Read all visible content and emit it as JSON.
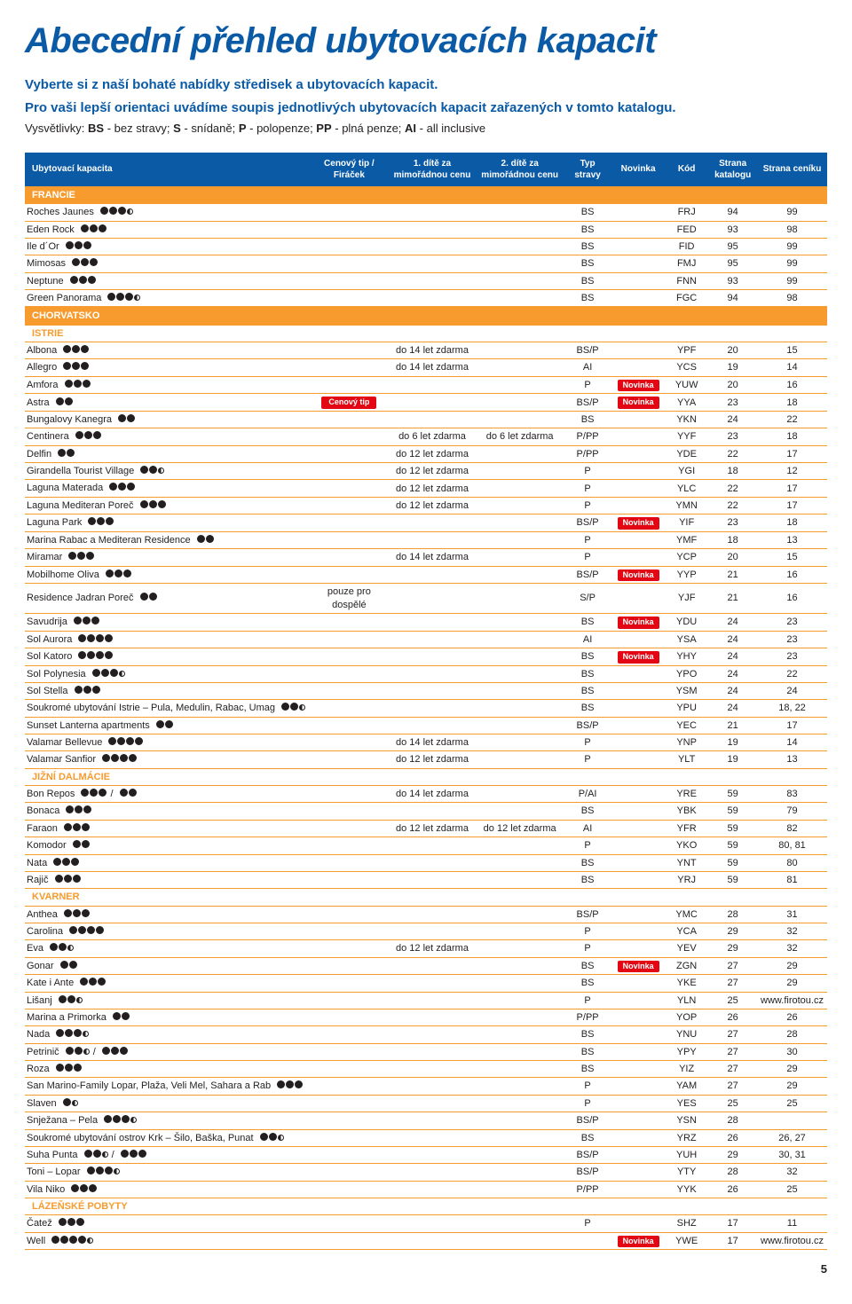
{
  "title": "Abecední přehled ubytovacích kapacit",
  "lead1": "Vyberte si z naší bohaté nabídky středisek a ubytovacích kapacit.",
  "lead2": "Pro vaši lepší orientaci uvádíme soupis jednotlivých ubytovacích kapacit zařazených v tomto katalogu.",
  "legend_prefix": "Vysvětlivky:  ",
  "legend_items": [
    [
      "BS",
      "bez stravy"
    ],
    [
      "S",
      "snídaně"
    ],
    [
      "P",
      "polopenze"
    ],
    [
      "PP",
      "plná penze"
    ],
    [
      "AI",
      "all inclusive"
    ]
  ],
  "headers": {
    "name": "Ubytovací kapacita",
    "tip": "Cenový tip / Firáček",
    "d1": "1. dítě za mimořádnou cenu",
    "d2": "2. dítě za mimořádnou cenu",
    "typ": "Typ stravy",
    "nov": "Novinka",
    "kod": "Kód",
    "kat": "Strana katalogu",
    "cen": "Strana ceníku"
  },
  "tags": {
    "novinka": "Novinka",
    "tip": "Cenový tip"
  },
  "pagenum": "5",
  "colors": {
    "accent": "#0a5aa6",
    "rule": "#f79b2e",
    "red": "#e30613"
  },
  "rows": [
    {
      "section": "FRANCIE"
    },
    {
      "n": "Roches Jaunes",
      "s": 3.5,
      "typ": "BS",
      "kod": "FRJ",
      "kat": "94",
      "cen": "99"
    },
    {
      "n": "Eden Rock",
      "s": 3,
      "typ": "BS",
      "kod": "FED",
      "kat": "93",
      "cen": "98"
    },
    {
      "n": "Ile d´Or",
      "s": 3,
      "typ": "BS",
      "kod": "FID",
      "kat": "95",
      "cen": "99"
    },
    {
      "n": "Mimosas",
      "s": 3,
      "typ": "BS",
      "kod": "FMJ",
      "kat": "95",
      "cen": "99"
    },
    {
      "n": "Neptune",
      "s": 3,
      "typ": "BS",
      "kod": "FNN",
      "kat": "93",
      "cen": "99"
    },
    {
      "n": "Green Panorama",
      "s": 3.5,
      "typ": "BS",
      "kod": "FGC",
      "kat": "94",
      "cen": "98"
    },
    {
      "section": "CHORVATSKO"
    },
    {
      "sub": "ISTRIE"
    },
    {
      "n": "Albona",
      "s": 3,
      "d1": "do 14 let zdarma",
      "typ": "BS/P",
      "kod": "YPF",
      "kat": "20",
      "cen": "15"
    },
    {
      "n": "Allegro",
      "s": 3,
      "d1": "do 14 let zdarma",
      "typ": "AI",
      "kod": "YCS",
      "kat": "19",
      "cen": "14"
    },
    {
      "n": "Amfora",
      "s": 3,
      "typ": "P",
      "nov": true,
      "kod": "YUW",
      "kat": "20",
      "cen": "16"
    },
    {
      "n": "Astra",
      "s": 2,
      "tip": true,
      "typ": "BS/P",
      "nov": true,
      "kod": "YYA",
      "kat": "23",
      "cen": "18"
    },
    {
      "n": "Bungalovy Kanegra",
      "s": 2,
      "typ": "BS",
      "kod": "YKN",
      "kat": "24",
      "cen": "22"
    },
    {
      "n": "Centinera",
      "s": 3,
      "d1": "do 6 let zdarma",
      "d2": "do 6 let zdarma",
      "typ": "P/PP",
      "kod": "YYF",
      "kat": "23",
      "cen": "18"
    },
    {
      "n": "Delfin",
      "s": 2,
      "d1": "do 12 let zdarma",
      "typ": "P/PP",
      "kod": "YDE",
      "kat": "22",
      "cen": "17"
    },
    {
      "n": "Girandella Tourist Village",
      "s": 2.5,
      "d1": "do 12 let zdarma",
      "typ": "P",
      "kod": "YGI",
      "kat": "18",
      "cen": "12"
    },
    {
      "n": "Laguna Materada",
      "s": 3,
      "d1": "do 12 let zdarma",
      "typ": "P",
      "kod": "YLC",
      "kat": "22",
      "cen": "17"
    },
    {
      "n": "Laguna Mediteran Poreč",
      "s": 3,
      "d1": "do 12 let zdarma",
      "typ": "P",
      "kod": "YMN",
      "kat": "22",
      "cen": "17"
    },
    {
      "n": "Laguna Park",
      "s": 3,
      "typ": "BS/P",
      "nov": true,
      "kod": "YIF",
      "kat": "23",
      "cen": "18"
    },
    {
      "n": "Marina Rabac a Mediteran Residence",
      "s": 2,
      "typ": "P",
      "kod": "YMF",
      "kat": "18",
      "cen": "13"
    },
    {
      "n": "Miramar",
      "s": 3,
      "d1": "do 14 let zdarma",
      "typ": "P",
      "kod": "YCP",
      "kat": "20",
      "cen": "15"
    },
    {
      "n": "Mobilhome Oliva",
      "s": 3,
      "typ": "BS/P",
      "nov": true,
      "kod": "YYP",
      "kat": "21",
      "cen": "16"
    },
    {
      "n": "Residence Jadran Poreč",
      "s": 2,
      "tip_text": "pouze pro dospělé",
      "typ": "S/P",
      "kod": "YJF",
      "kat": "21",
      "cen": "16"
    },
    {
      "n": "Savudrija",
      "s": 3,
      "typ": "BS",
      "nov": true,
      "kod": "YDU",
      "kat": "24",
      "cen": "23"
    },
    {
      "n": "Sol Aurora",
      "s": 4,
      "typ": "AI",
      "kod": "YSA",
      "kat": "24",
      "cen": "23"
    },
    {
      "n": "Sol Katoro",
      "s": 4,
      "typ": "BS",
      "nov": true,
      "kod": "YHY",
      "kat": "24",
      "cen": "23"
    },
    {
      "n": "Sol Polynesia",
      "s": 3.5,
      "typ": "BS",
      "kod": "YPO",
      "kat": "24",
      "cen": "22"
    },
    {
      "n": "Sol Stella",
      "s": 3,
      "typ": "BS",
      "kod": "YSM",
      "kat": "24",
      "cen": "24"
    },
    {
      "n": "Soukromé ubytování  Istrie – Pula, Medulin, Rabac, Umag",
      "s": 2.5,
      "typ": "BS",
      "kod": "YPU",
      "kat": "24",
      "cen": "18, 22"
    },
    {
      "n": "Sunset Lanterna apartments",
      "s": 2,
      "typ": "BS/P",
      "kod": "YEC",
      "kat": "21",
      "cen": "17"
    },
    {
      "n": "Valamar Bellevue",
      "s": 4,
      "d1": "do 14 let zdarma",
      "typ": "P",
      "kod": "YNP",
      "kat": "19",
      "cen": "14"
    },
    {
      "n": "Valamar Sanfior",
      "s": 4,
      "d1": "do 12 let zdarma",
      "typ": "P",
      "kod": "YLT",
      "kat": "19",
      "cen": "13"
    },
    {
      "sub": "JIŽNÍ DALMÁCIE"
    },
    {
      "n": "Bon Repos",
      "s": 3,
      "s2": 2,
      "d1": "do 14 let zdarma",
      "typ": "P/AI",
      "kod": "YRE",
      "kat": "59",
      "cen": "83"
    },
    {
      "n": "Bonaca",
      "s": 3,
      "typ": "BS",
      "kod": "YBK",
      "kat": "59",
      "cen": "79"
    },
    {
      "n": "Faraon",
      "s": 3,
      "d1": "do 12 let zdarma",
      "d2": "do 12 let zdarma",
      "typ": "AI",
      "kod": "YFR",
      "kat": "59",
      "cen": "82"
    },
    {
      "n": "Komodor",
      "s": 2,
      "typ": "P",
      "kod": "YKO",
      "kat": "59",
      "cen": "80, 81"
    },
    {
      "n": "Nata",
      "s": 3,
      "typ": "BS",
      "kod": "YNT",
      "kat": "59",
      "cen": "80"
    },
    {
      "n": "Rajič",
      "s": 3,
      "typ": "BS",
      "kod": "YRJ",
      "kat": "59",
      "cen": "81"
    },
    {
      "sub": "KVARNER"
    },
    {
      "n": "Anthea",
      "s": 3,
      "typ": "BS/P",
      "kod": "YMC",
      "kat": "28",
      "cen": "31"
    },
    {
      "n": "Carolina",
      "s": 4,
      "typ": "P",
      "kod": "YCA",
      "kat": "29",
      "cen": "32"
    },
    {
      "n": "Eva",
      "s": 2.5,
      "d1": "do 12 let zdarma",
      "typ": "P",
      "kod": "YEV",
      "kat": "29",
      "cen": "32"
    },
    {
      "n": "Gonar",
      "s": 2,
      "typ": "BS",
      "nov": true,
      "kod": "ZGN",
      "kat": "27",
      "cen": "29"
    },
    {
      "n": "Kate i Ante",
      "s": 3,
      "typ": "BS",
      "kod": "YKE",
      "kat": "27",
      "cen": "29"
    },
    {
      "n": "Lišanj",
      "s": 2.5,
      "typ": "P",
      "kod": "YLN",
      "kat": "25",
      "cen": "www.firotou.cz"
    },
    {
      "n": "Marina a Primorka",
      "s": 2,
      "typ": "P/PP",
      "kod": "YOP",
      "kat": "26",
      "cen": "26"
    },
    {
      "n": "Nada",
      "s": 3.5,
      "typ": "BS",
      "kod": "YNU",
      "kat": "27",
      "cen": "28"
    },
    {
      "n": "Petrinič",
      "s": 2.5,
      "s2": 3,
      "typ": "BS",
      "kod": "YPY",
      "kat": "27",
      "cen": "30"
    },
    {
      "n": "Roza",
      "s": 3,
      "typ": "BS",
      "kod": "YIZ",
      "kat": "27",
      "cen": "29"
    },
    {
      "n": "San Marino-Family Lopar, Plaža, Veli Mel, Sahara a Rab",
      "s": 3,
      "typ": "P",
      "kod": "YAM",
      "kat": "27",
      "cen": "29"
    },
    {
      "n": "Slaven",
      "s": 1.5,
      "typ": "P",
      "kod": "YES",
      "kat": "25",
      "cen": "25"
    },
    {
      "n": "Snježana – Pela",
      "s": 3.5,
      "typ": "BS/P",
      "kod": "YSN",
      "kat": "28",
      "cen": ""
    },
    {
      "n": "Soukromé ubytování ostrov Krk – Šilo, Baška, Punat",
      "s": 2.5,
      "typ": "BS",
      "kod": "YRZ",
      "kat": "26",
      "cen": "26, 27"
    },
    {
      "n": "Suha Punta",
      "s": 2.5,
      "s2": 3,
      "typ": "BS/P",
      "kod": "YUH",
      "kat": "29",
      "cen": "30, 31"
    },
    {
      "n": "Toni – Lopar",
      "s": 3.5,
      "typ": "BS/P",
      "kod": "YTY",
      "kat": "28",
      "cen": "32"
    },
    {
      "n": "Vila Niko",
      "s": 3,
      "typ": "P/PP",
      "kod": "YYK",
      "kat": "26",
      "cen": "25"
    },
    {
      "sub": "LÁZEŇSKÉ POBYTY"
    },
    {
      "n": "Čatež",
      "s": 3,
      "typ": "P",
      "kod": "SHZ",
      "kat": "17",
      "cen": "11"
    },
    {
      "n": "Well",
      "s": 4.5,
      "nov": true,
      "kod": "YWE",
      "kat": "17",
      "cen": "www.firotou.cz"
    }
  ]
}
